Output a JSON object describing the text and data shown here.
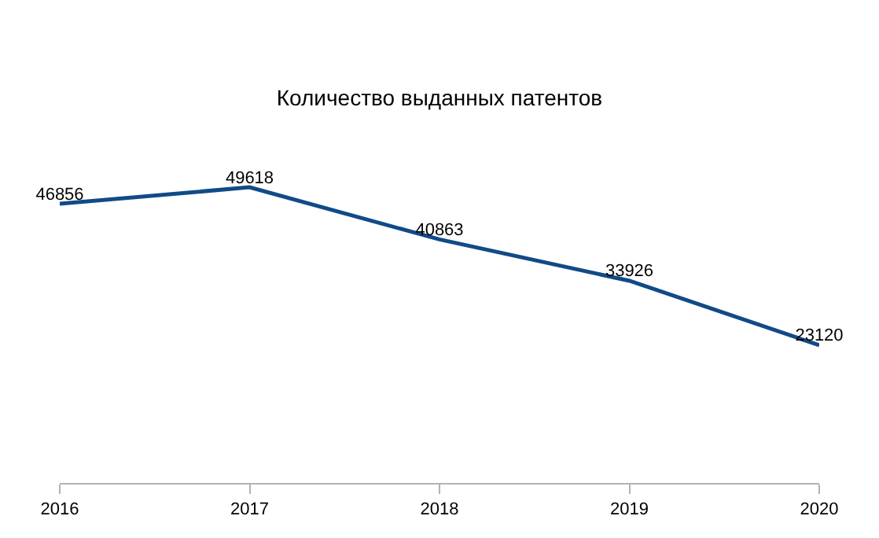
{
  "chart_data": {
    "type": "line",
    "title": "Количество выданных патентов",
    "categories": [
      "2016",
      "2017",
      "2018",
      "2019",
      "2020"
    ],
    "series": [
      {
        "color": "#114a87",
        "values": [
          46856,
          49618,
          40863,
          33926,
          23120
        ]
      }
    ],
    "data_labels": true,
    "tick_labels": "x",
    "legend": false,
    "marker": "none",
    "line_style": "solid"
  }
}
